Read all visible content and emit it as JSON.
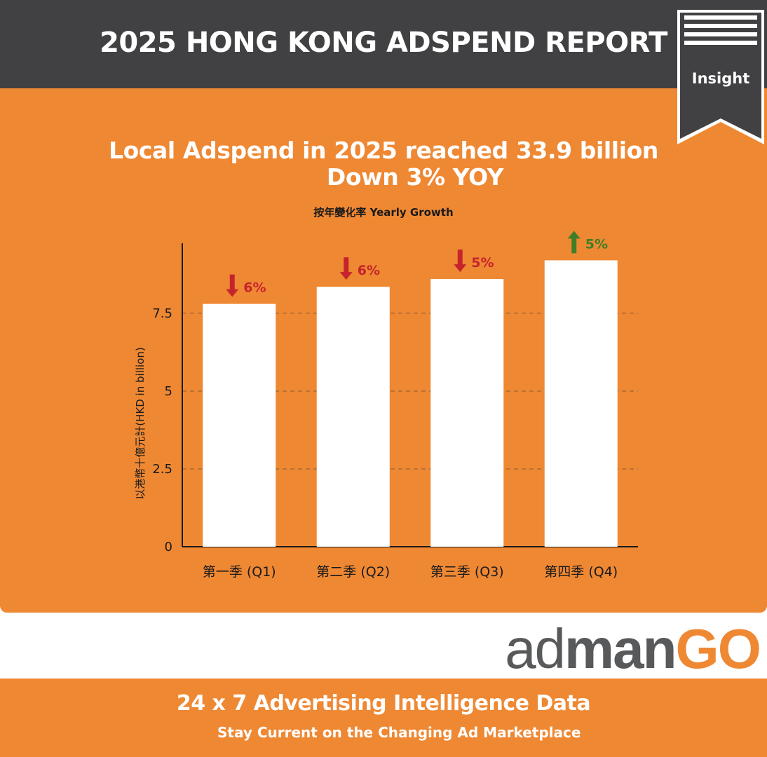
{
  "header": {
    "title": "2025 HONG KONG ADSPEND REPORT",
    "badge_label": "Insight"
  },
  "headline": {
    "line1": "Local Adspend in 2025 reached 33.9 billion",
    "line2": "Down 3% YOY"
  },
  "subtitle": "按年變化率 Yearly Growth",
  "colors": {
    "header_bg": "#414042",
    "accent_orange": "#ef8833",
    "bar": "#ffffff",
    "down": "#c5242c",
    "up": "#3f7e26"
  },
  "chart_data": {
    "type": "bar",
    "categories": [
      "第一季 (Q1)",
      "第二季 (Q2)",
      "第三季 (Q3)",
      "第四季 (Q4)"
    ],
    "values": [
      7.8,
      8.35,
      8.6,
      9.2
    ],
    "ylabel": "以港幣十億元計(HKD in billion)",
    "ylim": [
      0,
      9.75
    ],
    "yticks": [
      0,
      2.5,
      5,
      7.5
    ],
    "ytick_labels": [
      "0",
      "2.5",
      "5",
      "7.5"
    ],
    "grid": "dashed horizontal",
    "annotations": [
      {
        "text": "6%",
        "direction": "down"
      },
      {
        "text": "6%",
        "direction": "down"
      },
      {
        "text": "5%",
        "direction": "down"
      },
      {
        "text": "5%",
        "direction": "up"
      }
    ]
  },
  "logo": {
    "part1": "ad",
    "part2": "man",
    "part3": "GO"
  },
  "footer": {
    "line1": "24 x 7 Advertising Intelligence Data",
    "line2": "Stay Current on the Changing Ad Marketplace"
  }
}
